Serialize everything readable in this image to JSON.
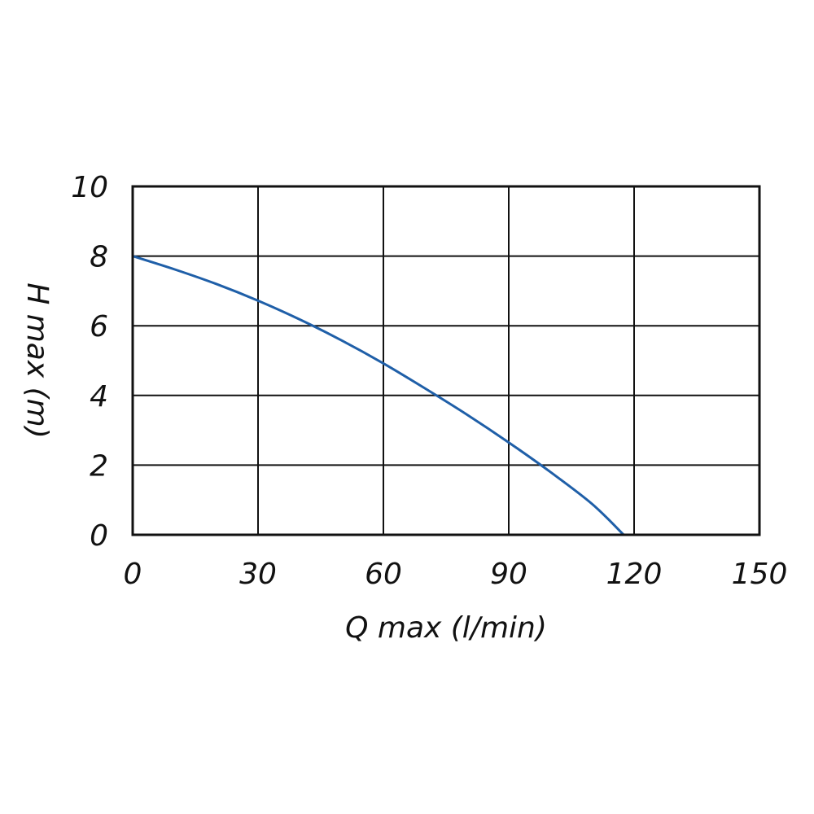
{
  "chart_data": {
    "type": "line",
    "title": "",
    "xlabel": "Q max (l/min)",
    "ylabel": "H max (m)",
    "xlim": [
      0,
      150
    ],
    "ylim": [
      0,
      10
    ],
    "xticks": [
      0,
      30,
      60,
      90,
      120,
      150
    ],
    "yticks": [
      0,
      2,
      4,
      6,
      8,
      10
    ],
    "xtick_labels": [
      "0",
      "30",
      "60",
      "90",
      "120",
      "150"
    ],
    "ytick_labels": [
      "0",
      "2",
      "4",
      "6",
      "8",
      "10"
    ],
    "grid": true,
    "series": [
      {
        "color": "#1f5fa8",
        "x": [
          0,
          10,
          20,
          30,
          40,
          50,
          60,
          70,
          80,
          90,
          100,
          110,
          117.5
        ],
        "y": [
          8.0,
          7.62,
          7.2,
          6.72,
          6.18,
          5.58,
          4.92,
          4.2,
          3.45,
          2.65,
          1.8,
          0.88,
          0.0
        ]
      }
    ]
  }
}
